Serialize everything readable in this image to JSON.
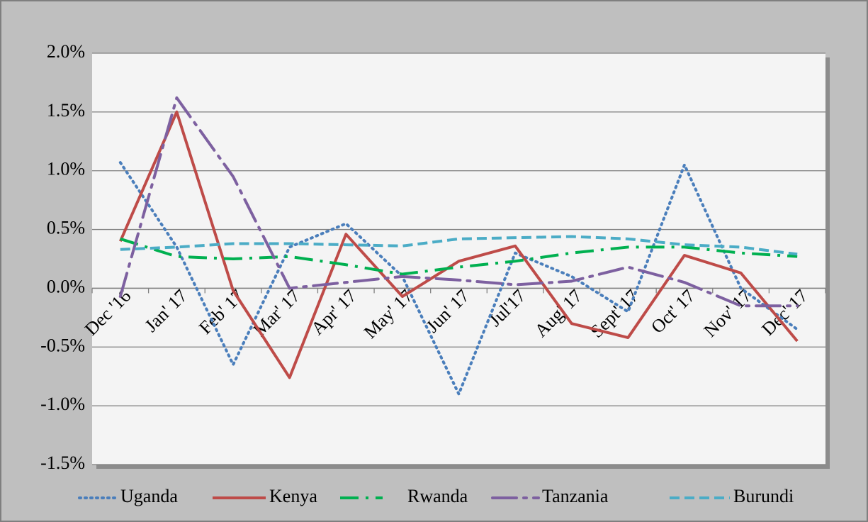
{
  "chart_data": {
    "type": "line",
    "categories": [
      "Dec '16",
      "Jan' 17",
      "Feb' 17",
      "Mar' 17",
      "Apr' 17",
      "May' 17",
      "Jun' 17",
      "Jul'17",
      "Aug' 17",
      "Sept' 17",
      "Oct' 17",
      "Nov' 17",
      "Dec' 17"
    ],
    "series": [
      {
        "name": "Uganda",
        "color": "#4a7ebb",
        "values": [
          1.07,
          0.35,
          -0.65,
          0.35,
          0.55,
          0.1,
          -0.9,
          0.3,
          0.1,
          -0.2,
          1.05,
          0.0,
          -0.35
        ]
      },
      {
        "name": "Kenya",
        "color": "#be4b48",
        "values": [
          0.4,
          1.5,
          -0.02,
          -0.76,
          0.46,
          -0.07,
          0.23,
          0.36,
          -0.3,
          -0.42,
          0.28,
          0.13,
          -0.45
        ]
      },
      {
        "name": "Rwanda",
        "color": "#00b050",
        "values": [
          0.42,
          0.27,
          0.25,
          0.27,
          0.2,
          0.12,
          0.18,
          0.23,
          0.3,
          0.35,
          0.35,
          0.3,
          0.27
        ]
      },
      {
        "name": "Tanzania",
        "color": "#7d60a0",
        "values": [
          -0.07,
          1.62,
          0.95,
          0.0,
          0.05,
          0.1,
          0.07,
          0.03,
          0.06,
          0.18,
          0.05,
          -0.15,
          -0.15
        ]
      },
      {
        "name": "Burundi",
        "color": "#4bacc6",
        "values": [
          0.33,
          0.35,
          0.38,
          0.38,
          0.37,
          0.36,
          0.42,
          0.43,
          0.44,
          0.42,
          0.37,
          0.35,
          0.29
        ]
      }
    ],
    "ylim": [
      -1.5,
      2.0
    ],
    "yticks": [
      {
        "value": -1.5,
        "label": "-1.5%"
      },
      {
        "value": -1.0,
        "label": "-1.0%"
      },
      {
        "value": -0.5,
        "label": "-0.5%"
      },
      {
        "value": 0.0,
        "label": "0.0%"
      },
      {
        "value": 0.5,
        "label": "0.5%"
      },
      {
        "value": 1.0,
        "label": "1.0%"
      },
      {
        "value": 1.5,
        "label": "1.5%"
      },
      {
        "value": 2.0,
        "label": "2.0%"
      }
    ],
    "grid": true,
    "legend": "bottom"
  }
}
